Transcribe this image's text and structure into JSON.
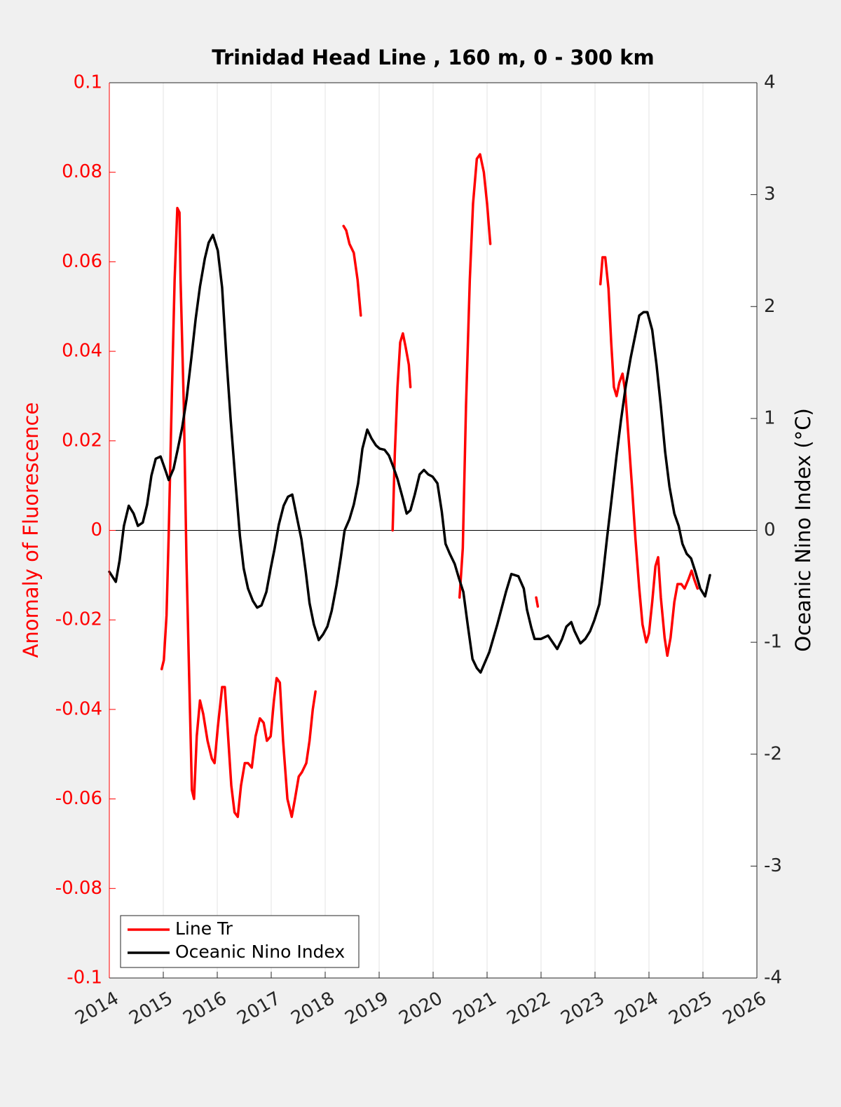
{
  "chart_data": {
    "type": "line",
    "title": "Trinidad Head Line , 160 m, 0 - 300 km",
    "ylabel": "Anomaly of Fluorescence",
    "y2label": "Oceanic Nino Index (°C)",
    "xlim": [
      2014,
      2026
    ],
    "xticks": [
      2014,
      2015,
      2016,
      2017,
      2018,
      2019,
      2020,
      2021,
      2022,
      2023,
      2024,
      2025,
      2026
    ],
    "ylim": [
      -0.1,
      0.1
    ],
    "yticks": [
      -0.1,
      -0.08,
      -0.06,
      -0.04,
      -0.02,
      0,
      0.02,
      0.04,
      0.06,
      0.08,
      0.1
    ],
    "y2lim": [
      -4,
      4
    ],
    "y2ticks": [
      -4,
      -3,
      -2,
      -1,
      0,
      1,
      2,
      3,
      4
    ],
    "grid": "x",
    "legend": "lower left",
    "ylabel_color": "#ff0000",
    "series": [
      {
        "name": "Line Tr",
        "color": "#ff0000",
        "x": [
          2014.97,
          2015.01,
          2015.06,
          2015.1,
          2015.16,
          2015.21,
          2015.26,
          2015.3,
          2015.32,
          2015.38,
          2015.43,
          2015.48,
          2015.53,
          2015.57,
          2015.62,
          2015.68,
          2015.74,
          2015.82,
          2015.9,
          2015.95,
          2016.01,
          2016.09,
          2016.14,
          2016.19,
          2016.26,
          2016.32,
          2016.38,
          2016.44,
          2016.51,
          2016.57,
          2016.64,
          2016.71,
          2016.79,
          2016.86,
          2016.92,
          2016.99,
          2017.05,
          2017.1,
          2017.16,
          2017.22,
          2017.3,
          2017.38,
          2017.44,
          2017.51,
          2017.57,
          2017.65,
          2017.71,
          2017.77,
          2017.82,
          null,
          2018.34,
          2018.39,
          2018.45,
          2018.53,
          2018.6,
          2018.66,
          null,
          2019.25,
          2019.29,
          2019.34,
          2019.39,
          2019.44,
          2019.49,
          2019.55,
          2019.58,
          null,
          2020.49,
          2020.55,
          2020.61,
          2020.68,
          2020.74,
          2020.81,
          2020.87,
          2020.94,
          2021.0,
          2021.06,
          null,
          2021.91,
          2021.94,
          null,
          2023.1,
          2023.14,
          2023.19,
          2023.25,
          2023.3,
          2023.35,
          2023.4,
          2023.45,
          2023.51,
          2023.56,
          2023.62,
          2023.69,
          2023.75,
          2023.82,
          2023.88,
          2023.95,
          2024.0,
          2024.06,
          2024.12,
          2024.17,
          2024.22,
          2024.29,
          2024.34,
          2024.4,
          2024.47,
          2024.53,
          2024.6,
          2024.66,
          2024.73,
          2024.79,
          2024.84,
          2024.9
        ],
        "values": [
          -0.031,
          -0.029,
          -0.019,
          -0.001,
          0.031,
          0.056,
          0.072,
          0.071,
          0.056,
          0.028,
          -0.007,
          -0.033,
          -0.058,
          -0.06,
          -0.046,
          -0.038,
          -0.041,
          -0.047,
          -0.051,
          -0.052,
          -0.044,
          -0.035,
          -0.035,
          -0.044,
          -0.057,
          -0.063,
          -0.064,
          -0.057,
          -0.052,
          -0.052,
          -0.053,
          -0.046,
          -0.042,
          -0.043,
          -0.047,
          -0.046,
          -0.038,
          -0.033,
          -0.034,
          -0.047,
          -0.06,
          -0.064,
          -0.06,
          -0.055,
          -0.054,
          -0.052,
          -0.047,
          -0.04,
          -0.036,
          null,
          0.068,
          0.067,
          0.064,
          0.062,
          0.056,
          0.048,
          null,
          0,
          0.017,
          0.032,
          0.042,
          0.044,
          0.041,
          0.037,
          0.032,
          null,
          -0.015,
          -0.004,
          0.028,
          0.056,
          0.073,
          0.083,
          0.084,
          0.08,
          0.073,
          0.064,
          null,
          -0.015,
          -0.017,
          null,
          0.055,
          0.061,
          0.061,
          0.054,
          0.042,
          0.032,
          0.03,
          0.033,
          0.035,
          0.031,
          0.021,
          0.009,
          -0.002,
          -0.013,
          -0.021,
          -0.025,
          -0.023,
          -0.016,
          -0.008,
          -0.006,
          -0.015,
          -0.024,
          -0.028,
          -0.024,
          -0.016,
          -0.012,
          -0.012,
          -0.013,
          -0.011,
          -0.009,
          -0.011,
          -0.013
        ]
      },
      {
        "name": "Oceanic Nino Index",
        "color": "#000000",
        "axis": "y2",
        "x": [
          2014.0,
          2014.12,
          2014.19,
          2014.27,
          2014.36,
          2014.45,
          2014.53,
          2014.62,
          2014.7,
          2014.78,
          2014.86,
          2014.95,
          2015.03,
          2015.1,
          2015.19,
          2015.27,
          2015.35,
          2015.43,
          2015.52,
          2015.6,
          2015.68,
          2015.77,
          2015.84,
          2015.92,
          2016.01,
          2016.09,
          2016.17,
          2016.25,
          2016.34,
          2016.42,
          2016.49,
          2016.57,
          2016.66,
          2016.74,
          2016.82,
          2016.91,
          2016.99,
          2017.06,
          2017.14,
          2017.23,
          2017.31,
          2017.39,
          2017.47,
          2017.56,
          2017.64,
          2017.71,
          2017.79,
          2017.88,
          2017.96,
          2018.04,
          2018.12,
          2018.21,
          2018.29,
          2018.36,
          2018.45,
          2018.53,
          2018.61,
          2018.69,
          2018.78,
          2018.86,
          2018.94,
          2019.01,
          2019.1,
          2019.18,
          2019.26,
          2019.34,
          2019.43,
          2019.51,
          2019.58,
          2019.66,
          2019.75,
          2019.83,
          2019.91,
          2019.99,
          2020.08,
          2020.16,
          2020.23,
          2020.31,
          2020.4,
          2020.48,
          2020.56,
          2020.64,
          2020.73,
          2020.81,
          2020.88,
          2021.04,
          2021.19,
          2021.35,
          2021.45,
          2021.58,
          2021.68,
          2021.74,
          2021.82,
          2021.88,
          2022.0,
          2022.13,
          2022.3,
          2022.39,
          2022.47,
          2022.56,
          2022.62,
          2022.73,
          2022.82,
          2022.91,
          2022.99,
          2023.08,
          2023.14,
          2023.22,
          2023.31,
          2023.4,
          2023.48,
          2023.57,
          2023.66,
          2023.74,
          2023.82,
          2023.9,
          2023.97,
          2024.06,
          2024.14,
          2024.22,
          2024.3,
          2024.38,
          2024.47,
          2024.55,
          2024.62,
          2024.7,
          2024.78,
          2024.86,
          2024.95,
          2025.04,
          2025.13
        ],
        "values": [
          -0.37,
          -0.46,
          -0.27,
          0.04,
          0.22,
          0.15,
          0.04,
          0.07,
          0.23,
          0.49,
          0.64,
          0.66,
          0.55,
          0.45,
          0.55,
          0.73,
          0.92,
          1.17,
          1.54,
          1.89,
          2.18,
          2.43,
          2.57,
          2.64,
          2.5,
          2.17,
          1.54,
          0.98,
          0.42,
          -0.05,
          -0.34,
          -0.52,
          -0.63,
          -0.69,
          -0.67,
          -0.55,
          -0.34,
          -0.17,
          0.05,
          0.22,
          0.3,
          0.32,
          0.13,
          -0.08,
          -0.37,
          -0.65,
          -0.84,
          -0.98,
          -0.93,
          -0.86,
          -0.72,
          -0.49,
          -0.24,
          0,
          0.1,
          0.23,
          0.42,
          0.73,
          0.9,
          0.82,
          0.76,
          0.73,
          0.72,
          0.67,
          0.57,
          0.46,
          0.3,
          0.15,
          0.18,
          0.32,
          0.5,
          0.54,
          0.5,
          0.48,
          0.42,
          0.17,
          -0.12,
          -0.21,
          -0.3,
          -0.43,
          -0.55,
          -0.84,
          -1.15,
          -1.23,
          -1.27,
          -1.09,
          -0.84,
          -0.55,
          -0.39,
          -0.41,
          -0.52,
          -0.71,
          -0.87,
          -0.97,
          -0.97,
          -0.94,
          -1.06,
          -0.97,
          -0.86,
          -0.82,
          -0.9,
          -1.01,
          -0.97,
          -0.9,
          -0.8,
          -0.66,
          -0.43,
          -0.08,
          0.29,
          0.67,
          0.98,
          1.29,
          1.54,
          1.73,
          1.92,
          1.95,
          1.95,
          1.79,
          1.48,
          1.11,
          0.7,
          0.39,
          0.15,
          0.04,
          -0.12,
          -0.21,
          -0.25,
          -0.37,
          -0.52,
          -0.59,
          -0.4
        ]
      }
    ]
  }
}
